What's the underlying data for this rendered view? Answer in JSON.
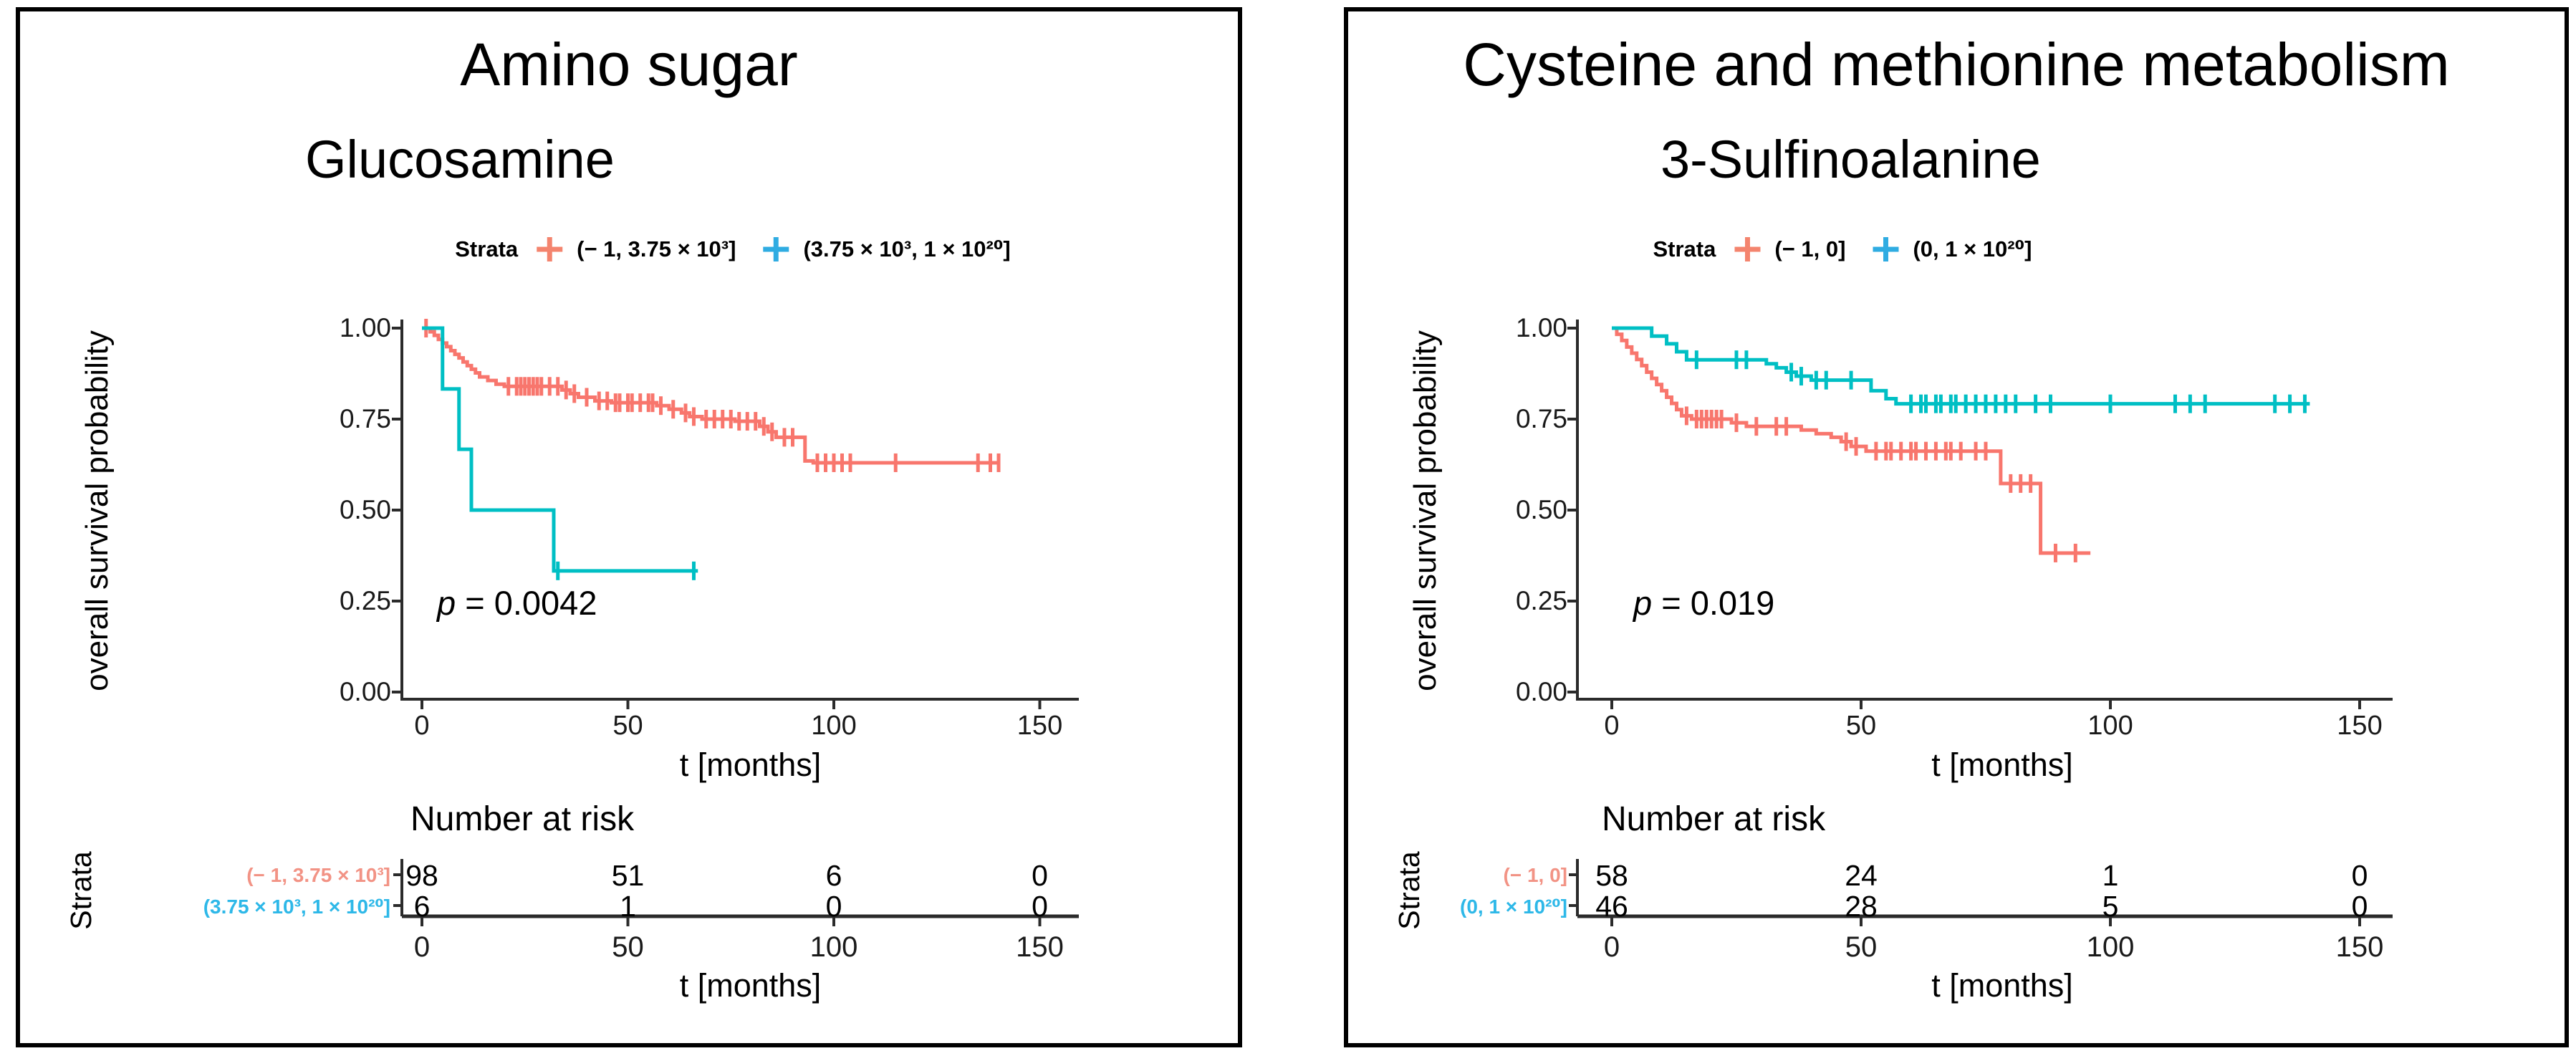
{
  "colors": {
    "curve_red": "#F8766D",
    "curve_teal": "#00BFC4",
    "legend_red": "#F4846E",
    "legend_blue": "#2FACE2",
    "table_red": "#F29385",
    "table_blue": "#2EB8E8",
    "axis": "#2b2b2b"
  },
  "panels": [
    {
      "title": "Amino sugar",
      "subtitle": "Glucosamine",
      "legend": {
        "title": "Strata",
        "item1": "(− 1, 3.75 × 10³]",
        "item2": "(3.75 × 10³, 1 × 10²⁰]"
      },
      "ylabel": "overall survival probability",
      "yticks": {
        "t100": "1.00",
        "t075": "0.75",
        "t050": "0.50",
        "t025": "0.25",
        "t000": "0.00"
      },
      "xticks": [
        "0",
        "50",
        "100",
        "150"
      ],
      "xlabel": "t [months]",
      "p": {
        "prefix": "p",
        "rest": " = 0.0042"
      },
      "risk": {
        "title": "Number at risk",
        "axis_label": "Strata",
        "rows": [
          {
            "label": "(− 1, 3.75 × 10³]",
            "values": [
              "98",
              "51",
              "6",
              "0"
            ]
          },
          {
            "label": "(3.75 × 10³, 1 × 10²⁰]",
            "values": [
              "6",
              "1",
              "0",
              "0"
            ]
          }
        ],
        "xticks": [
          "0",
          "50",
          "100",
          "150"
        ],
        "xlabel": "t [months]"
      }
    },
    {
      "title": "Cysteine and methionine metabolism",
      "subtitle": "3-Sulfinoalanine",
      "legend": {
        "title": "Strata",
        "item1": "(− 1, 0]",
        "item2": "(0, 1 × 10²⁰]"
      },
      "ylabel": "overall survival probability",
      "yticks": {
        "t100": "1.00",
        "t075": "0.75",
        "t050": "0.50",
        "t025": "0.25",
        "t000": "0.00"
      },
      "xticks": [
        "0",
        "50",
        "100",
        "150"
      ],
      "xlabel": "t [months]",
      "p": {
        "prefix": "p",
        "rest": " = 0.019"
      },
      "risk": {
        "title": "Number at risk",
        "axis_label": "Strata",
        "rows": [
          {
            "label": "(− 1, 0]",
            "values": [
              "58",
              "24",
              "1",
              "0"
            ]
          },
          {
            "label": "(0, 1 × 10²⁰]",
            "values": [
              "46",
              "28",
              "5",
              "0"
            ]
          }
        ],
        "xticks": [
          "0",
          "50",
          "100",
          "150"
        ],
        "xlabel": "t [months]"
      }
    }
  ],
  "chart_data": [
    {
      "type": "line",
      "subtype": "kaplan-meier-step",
      "title": "Amino sugar",
      "subtitle": "Glucosamine",
      "xlabel": "t [months]",
      "ylabel": "overall survival probability",
      "xlim": [
        0,
        158
      ],
      "ylim": [
        0,
        1.0
      ],
      "xticks": [
        0,
        50,
        100,
        150
      ],
      "yticks": [
        0,
        0.25,
        0.5,
        0.75,
        1.0
      ],
      "p_value": "p = 0.0042",
      "legend_position": "top",
      "series": [
        {
          "name": "(− 1, 3.75 × 10³]",
          "color": "#F8766D",
          "steps": [
            [
              0,
              1.0
            ],
            [
              2,
              0.99
            ],
            [
              3,
              0.98
            ],
            [
              4,
              0.969
            ],
            [
              5,
              0.959
            ],
            [
              6,
              0.949
            ],
            [
              7,
              0.938
            ],
            [
              8,
              0.928
            ],
            [
              9,
              0.918
            ],
            [
              10,
              0.907
            ],
            [
              11,
              0.897
            ],
            [
              12,
              0.887
            ],
            [
              13,
              0.877
            ],
            [
              14,
              0.866
            ],
            [
              16,
              0.856
            ],
            [
              18,
              0.846
            ],
            [
              20,
              0.84
            ],
            [
              34,
              0.83
            ],
            [
              36,
              0.82
            ],
            [
              38,
              0.81
            ],
            [
              42,
              0.8
            ],
            [
              46,
              0.795
            ],
            [
              57,
              0.787
            ],
            [
              60,
              0.777
            ],
            [
              63,
              0.767
            ],
            [
              65,
              0.757
            ],
            [
              68,
              0.75
            ],
            [
              76,
              0.744
            ],
            [
              82,
              0.73
            ],
            [
              84,
              0.715
            ],
            [
              86,
              0.7
            ],
            [
              93,
              0.635
            ],
            [
              95,
              0.63
            ]
          ],
          "end_t": 140,
          "censor_t": [
            1,
            21,
            23,
            24,
            25,
            26,
            27,
            28,
            29,
            31,
            33,
            35,
            37,
            40,
            43,
            45,
            47,
            48,
            50,
            51,
            53,
            55,
            56,
            58,
            61,
            64,
            66,
            69,
            71,
            73,
            75,
            77,
            79,
            81,
            83,
            85,
            88,
            90,
            96,
            98,
            100,
            102,
            104,
            115,
            135,
            138,
            140
          ]
        },
        {
          "name": "(3.75 × 10³, 1 × 10²⁰]",
          "color": "#00BFC4",
          "steps": [
            [
              0,
              1.0
            ],
            [
              5,
              0.833
            ],
            [
              9,
              0.667
            ],
            [
              12,
              0.5
            ],
            [
              32,
              0.333
            ]
          ],
          "end_t": 67,
          "censor_t": [
            33,
            66
          ]
        }
      ],
      "number_at_risk": {
        "times": [
          0,
          50,
          100,
          150
        ],
        "rows": [
          {
            "name": "(− 1, 3.75 × 10³]",
            "values": [
              98,
              51,
              6,
              0
            ]
          },
          {
            "name": "(3.75 × 10³, 1 × 10²⁰]",
            "values": [
              6,
              1,
              0,
              0
            ]
          }
        ]
      }
    },
    {
      "type": "line",
      "subtype": "kaplan-meier-step",
      "title": "Cysteine and methionine metabolism",
      "subtitle": "3-Sulfinoalanine",
      "xlabel": "t [months]",
      "ylabel": "overall survival probability",
      "xlim": [
        0,
        158
      ],
      "ylim": [
        0,
        1.0
      ],
      "xticks": [
        0,
        50,
        100,
        150
      ],
      "yticks": [
        0,
        0.25,
        0.5,
        0.75,
        1.0
      ],
      "p_value": "p = 0.019",
      "legend_position": "top",
      "series": [
        {
          "name": "(− 1, 0]",
          "color": "#F8766D",
          "steps": [
            [
              0,
              1.0
            ],
            [
              1,
              0.983
            ],
            [
              2,
              0.966
            ],
            [
              3,
              0.948
            ],
            [
              4,
              0.931
            ],
            [
              5,
              0.914
            ],
            [
              6,
              0.897
            ],
            [
              7,
              0.879
            ],
            [
              8,
              0.862
            ],
            [
              9,
              0.845
            ],
            [
              10,
              0.828
            ],
            [
              11,
              0.81
            ],
            [
              12,
              0.793
            ],
            [
              13,
              0.776
            ],
            [
              14,
              0.759
            ],
            [
              16,
              0.75
            ],
            [
              24,
              0.74
            ],
            [
              27,
              0.73
            ],
            [
              38,
              0.72
            ],
            [
              41,
              0.71
            ],
            [
              44,
              0.7
            ],
            [
              46,
              0.688
            ],
            [
              48,
              0.675
            ],
            [
              51,
              0.662
            ],
            [
              78,
              0.573
            ],
            [
              86,
              0.382
            ]
          ],
          "end_t": 96,
          "censor_t": [
            15,
            17,
            18,
            19,
            20,
            21,
            22,
            25,
            29,
            33,
            35,
            47,
            49,
            53,
            55,
            56,
            58,
            60,
            61,
            63,
            65,
            67,
            68,
            70,
            73,
            75,
            80,
            82,
            84,
            89,
            93
          ]
        },
        {
          "name": "(0, 1 × 10²⁰]",
          "color": "#00BFC4",
          "steps": [
            [
              0,
              1.0
            ],
            [
              8,
              0.978
            ],
            [
              11,
              0.957
            ],
            [
              13,
              0.935
            ],
            [
              15,
              0.913
            ],
            [
              31,
              0.902
            ],
            [
              33,
              0.891
            ],
            [
              35,
              0.879
            ],
            [
              37,
              0.868
            ],
            [
              40,
              0.857
            ],
            [
              52,
              0.828
            ],
            [
              55,
              0.806
            ],
            [
              57,
              0.792
            ]
          ],
          "end_t": 140,
          "censor_t": [
            17,
            25,
            27,
            36,
            38,
            41,
            43,
            48,
            60,
            62,
            63,
            65,
            66,
            68,
            69,
            71,
            73,
            75,
            77,
            79,
            81,
            85,
            88,
            100,
            113,
            116,
            119,
            133,
            136,
            139
          ]
        }
      ],
      "number_at_risk": {
        "times": [
          0,
          50,
          100,
          150
        ],
        "rows": [
          {
            "name": "(− 1, 0]",
            "values": [
              58,
              24,
              1,
              0
            ]
          },
          {
            "name": "(0, 1 × 10²⁰]",
            "values": [
              46,
              28,
              5,
              0
            ]
          }
        ]
      }
    }
  ]
}
